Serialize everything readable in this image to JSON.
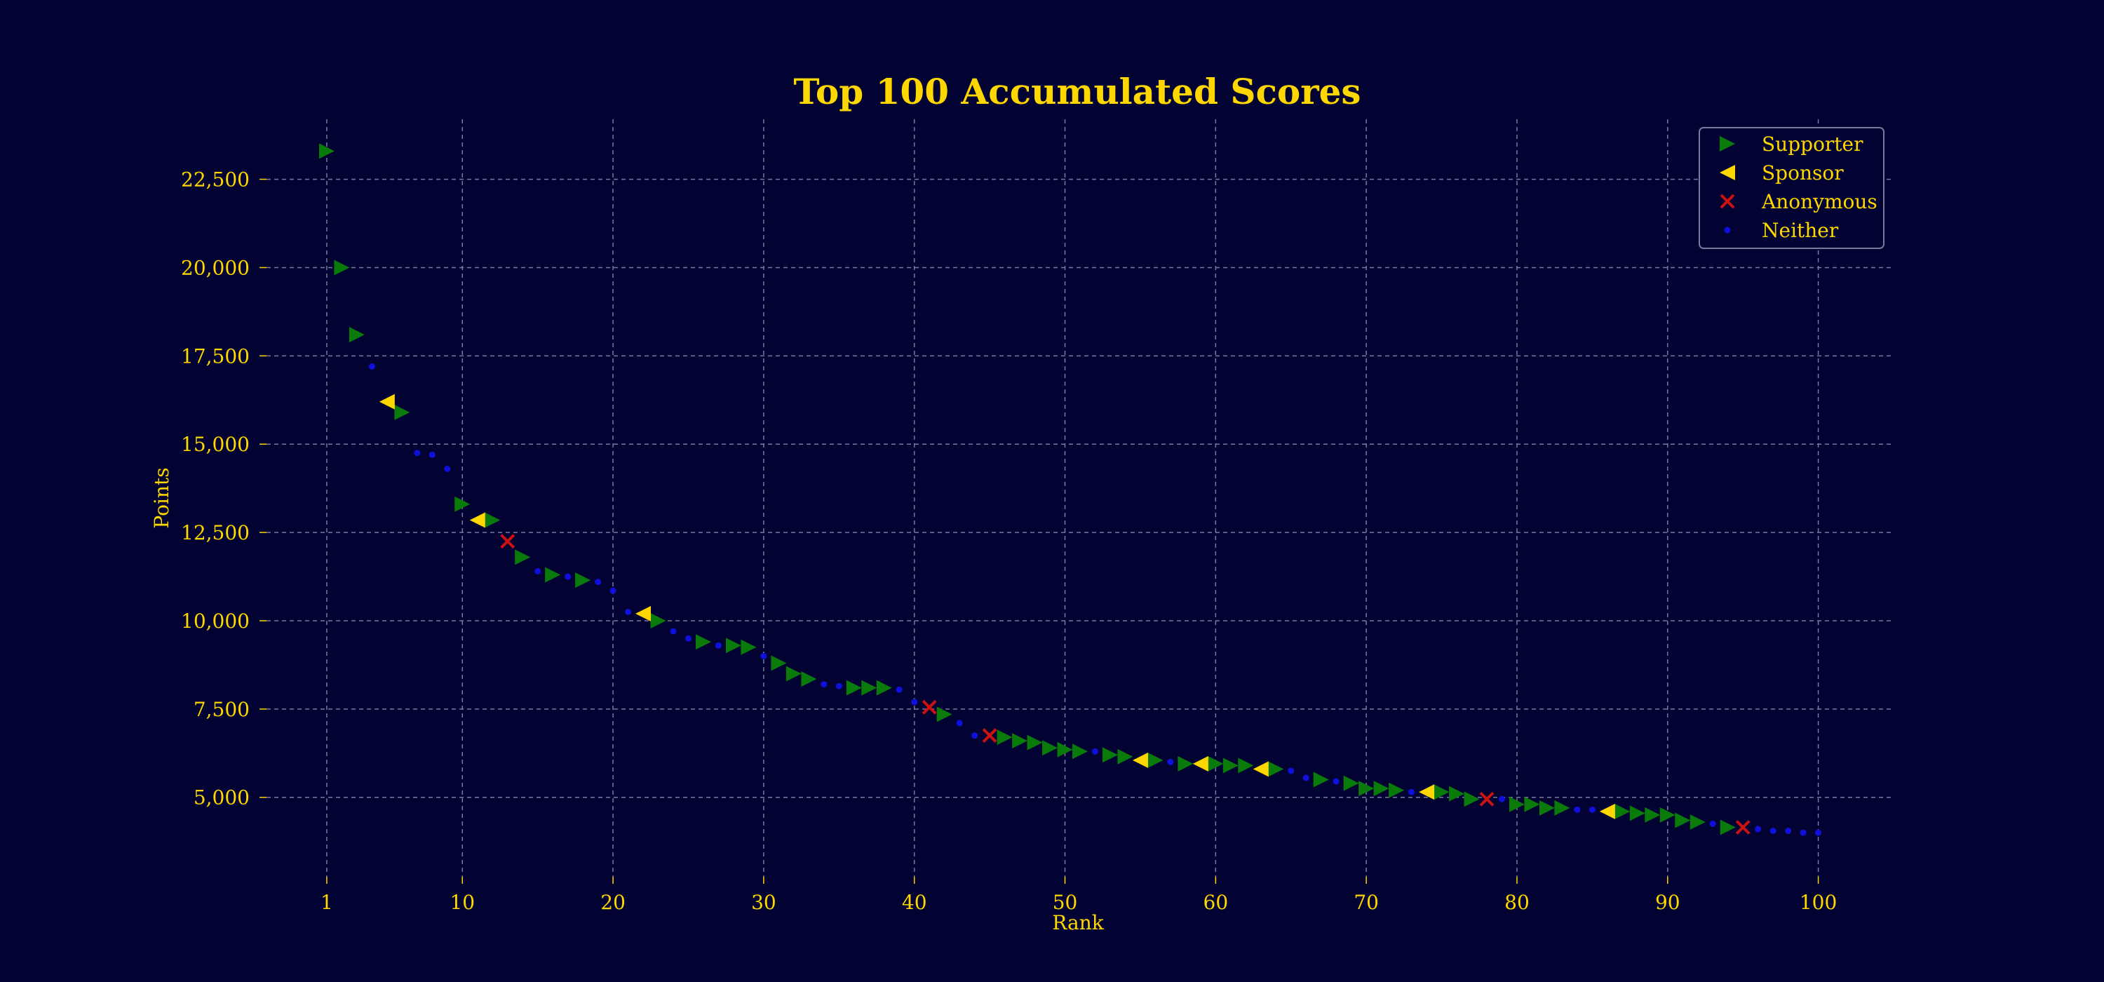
{
  "chart_data": {
    "type": "scatter",
    "title": "Top 100 Accumulated Scores",
    "xlabel": "Rank",
    "ylabel": "Points",
    "xlim": [
      -3,
      105
    ],
    "ylim": [
      2750,
      24200
    ],
    "xticks": [
      1,
      10,
      20,
      30,
      40,
      50,
      60,
      70,
      80,
      90,
      100
    ],
    "xtick_labels": [
      "1",
      "10",
      "20",
      "30",
      "40",
      "50",
      "60",
      "70",
      "80",
      "90",
      "100"
    ],
    "yticks": [
      5000,
      7500,
      10000,
      12500,
      15000,
      17500,
      20000,
      22500
    ],
    "ytick_labels": [
      "5,000",
      "7,500",
      "10,000",
      "12,500",
      "15,000",
      "17,500",
      "20,000",
      "22,500"
    ],
    "grid": true,
    "legend_position": "top-right",
    "colors": {
      "background": "#020233",
      "text": "#ffd700",
      "grid": "#7a7a9e",
      "supporter": "#0a7a0a",
      "sponsor": "#ffd700",
      "anonymous": "#cc1111",
      "neither": "#1010dd"
    },
    "series": [
      {
        "name": "Supporter",
        "marker": "triangle-right",
        "points": [
          [
            1,
            23300
          ],
          [
            2,
            20000
          ],
          [
            3,
            18100
          ],
          [
            6,
            15900
          ],
          [
            10,
            13300
          ],
          [
            12,
            12850
          ],
          [
            14,
            11800
          ],
          [
            16,
            11300
          ],
          [
            18,
            11150
          ],
          [
            23,
            10000
          ],
          [
            26,
            9400
          ],
          [
            28,
            9300
          ],
          [
            29,
            9250
          ],
          [
            31,
            8800
          ],
          [
            32,
            8500
          ],
          [
            33,
            8350
          ],
          [
            36,
            8100
          ],
          [
            37,
            8100
          ],
          [
            38,
            8100
          ],
          [
            42,
            7350
          ],
          [
            46,
            6700
          ],
          [
            47,
            6600
          ],
          [
            48,
            6550
          ],
          [
            49,
            6400
          ],
          [
            50,
            6350
          ],
          [
            51,
            6300
          ],
          [
            53,
            6200
          ],
          [
            54,
            6150
          ],
          [
            56,
            6050
          ],
          [
            58,
            5950
          ],
          [
            60,
            5950
          ],
          [
            61,
            5900
          ],
          [
            62,
            5900
          ],
          [
            64,
            5800
          ],
          [
            67,
            5500
          ],
          [
            69,
            5400
          ],
          [
            70,
            5250
          ],
          [
            71,
            5250
          ],
          [
            72,
            5200
          ],
          [
            75,
            5150
          ],
          [
            76,
            5100
          ],
          [
            77,
            4950
          ],
          [
            80,
            4800
          ],
          [
            81,
            4800
          ],
          [
            82,
            4700
          ],
          [
            83,
            4700
          ],
          [
            87,
            4600
          ],
          [
            88,
            4550
          ],
          [
            89,
            4500
          ],
          [
            90,
            4500
          ],
          [
            91,
            4350
          ],
          [
            92,
            4300
          ],
          [
            94,
            4150
          ]
        ]
      },
      {
        "name": "Sponsor",
        "marker": "triangle-left",
        "points": [
          [
            5,
            16200
          ],
          [
            11,
            12850
          ],
          [
            22,
            10200
          ],
          [
            55,
            6050
          ],
          [
            59,
            5950
          ],
          [
            63,
            5800
          ],
          [
            74,
            5150
          ],
          [
            86,
            4600
          ]
        ]
      },
      {
        "name": "Anonymous",
        "marker": "x",
        "points": [
          [
            13,
            12250
          ],
          [
            41,
            7550
          ],
          [
            45,
            6750
          ],
          [
            78,
            4950
          ],
          [
            95,
            4150
          ]
        ]
      },
      {
        "name": "Neither",
        "marker": "dot",
        "points": [
          [
            4,
            17200
          ],
          [
            7,
            14750
          ],
          [
            8,
            14700
          ],
          [
            9,
            14300
          ],
          [
            15,
            11400
          ],
          [
            17,
            11250
          ],
          [
            19,
            11100
          ],
          [
            20,
            10850
          ],
          [
            21,
            10250
          ],
          [
            24,
            9700
          ],
          [
            25,
            9500
          ],
          [
            27,
            9300
          ],
          [
            30,
            9000
          ],
          [
            34,
            8200
          ],
          [
            35,
            8150
          ],
          [
            39,
            8050
          ],
          [
            40,
            7700
          ],
          [
            43,
            7100
          ],
          [
            44,
            6750
          ],
          [
            52,
            6300
          ],
          [
            57,
            6000
          ],
          [
            65,
            5750
          ],
          [
            66,
            5550
          ],
          [
            68,
            5450
          ],
          [
            73,
            5150
          ],
          [
            79,
            4950
          ],
          [
            84,
            4650
          ],
          [
            85,
            4650
          ],
          [
            93,
            4250
          ],
          [
            96,
            4100
          ],
          [
            97,
            4050
          ],
          [
            98,
            4050
          ],
          [
            99,
            4000
          ],
          [
            100,
            4000
          ]
        ]
      }
    ]
  }
}
